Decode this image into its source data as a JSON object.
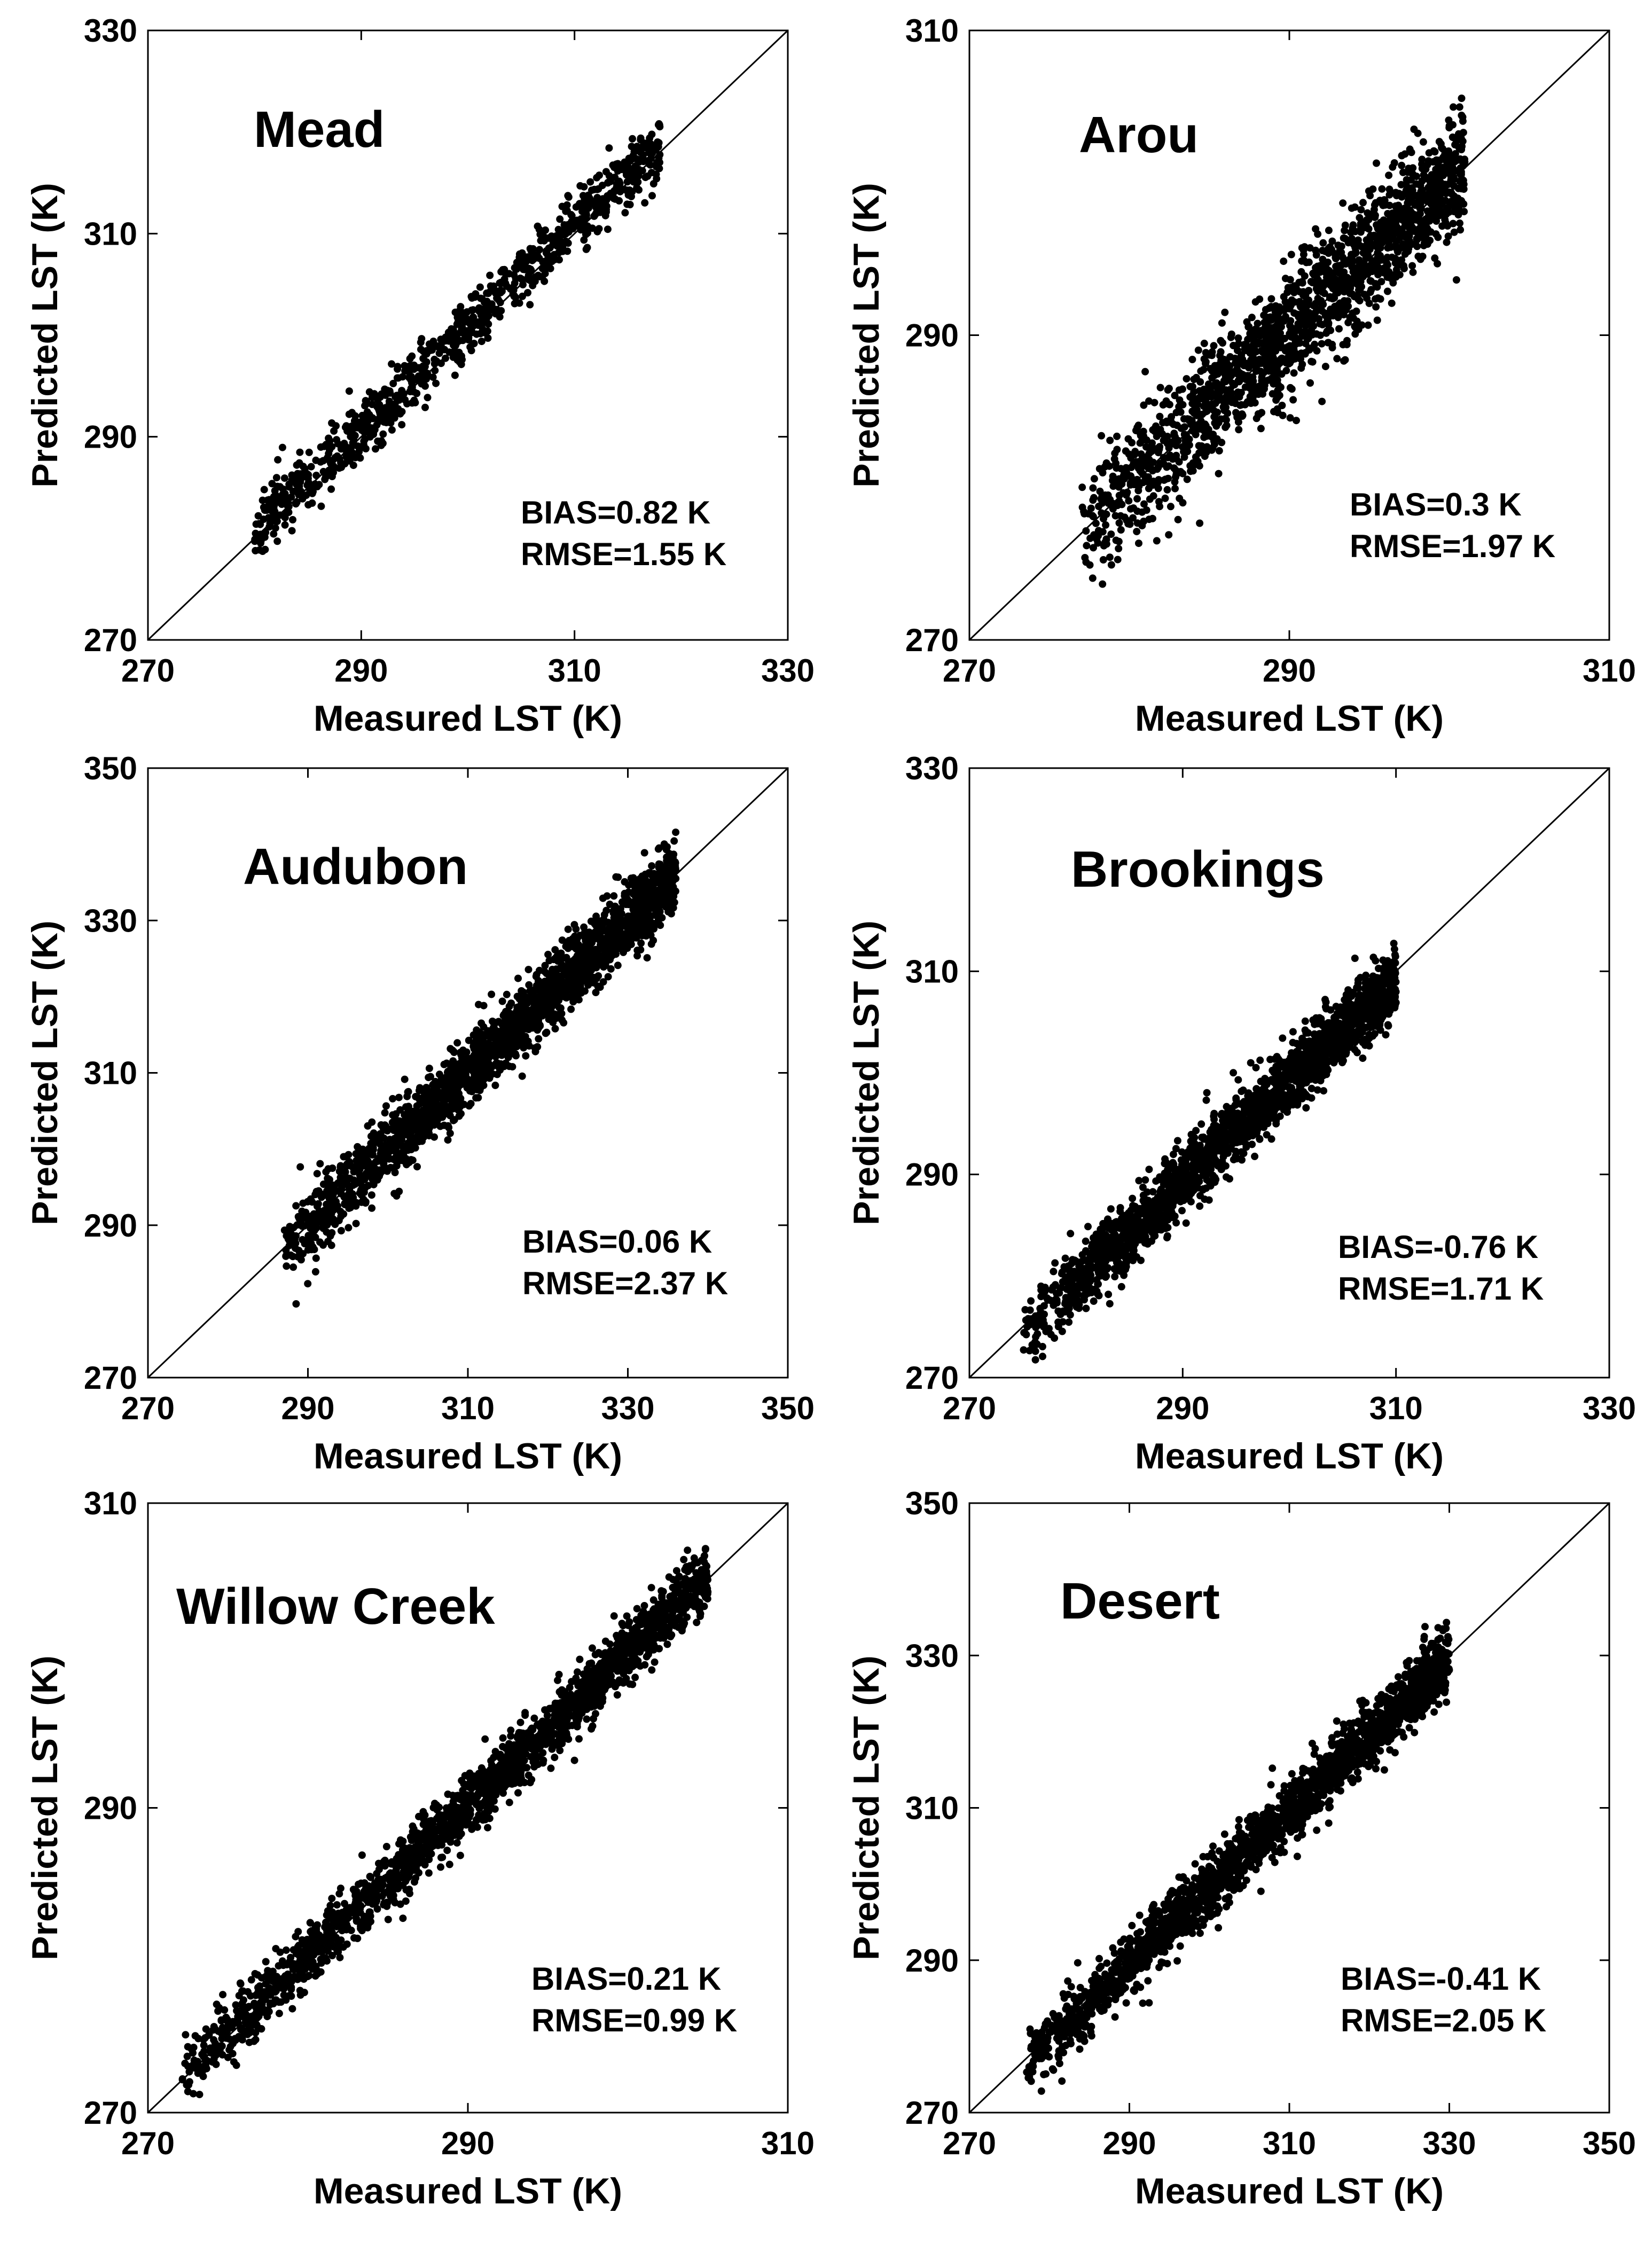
{
  "chart_data": [
    {
      "type": "scatter",
      "title": "Mead",
      "xlabel": "Measured LST (K)",
      "ylabel": "Predicted LST (K)",
      "xlim": [
        270,
        330
      ],
      "ylim": [
        270,
        330
      ],
      "xticks": [
        "270",
        "290",
        "310",
        "330"
      ],
      "yticks": [
        "270",
        "290",
        "310",
        "330"
      ],
      "one_to_one_line": true,
      "bias": "BIAS=0.82 K",
      "rmse": "RMSE=1.55 K",
      "scatter_model": {
        "x_min": 280,
        "x_max": 318,
        "slope": 1.0,
        "intercept": 0.82,
        "spread": 1.55,
        "n": 900,
        "seed": 11,
        "density": "mid"
      }
    },
    {
      "type": "scatter",
      "title": "Arou",
      "xlabel": "Measured LST (K)",
      "ylabel": "Predicted LST (K)",
      "xlim": [
        270,
        310
      ],
      "ylim": [
        270,
        310
      ],
      "xticks": [
        "270",
        "290",
        "310"
      ],
      "yticks": [
        "270",
        "290",
        "310"
      ],
      "one_to_one_line": true,
      "bias": "BIAS=0.3 K",
      "rmse": "RMSE=1.97 K",
      "scatter_model": {
        "x_min": 277,
        "x_max": 301,
        "slope": 1.0,
        "intercept": 0.3,
        "spread": 1.97,
        "n": 1700,
        "seed": 22,
        "density": "high"
      }
    },
    {
      "type": "scatter",
      "title": "Audubon",
      "xlabel": "Measured LST (K)",
      "ylabel": "Predicted LST (K)",
      "xlim": [
        270,
        350
      ],
      "ylim": [
        270,
        350
      ],
      "xticks": [
        "270",
        "290",
        "310",
        "330",
        "350"
      ],
      "yticks": [
        "270",
        "290",
        "310",
        "330",
        "350"
      ],
      "one_to_one_line": true,
      "bias": "BIAS=0.06 K",
      "rmse": "RMSE=2.37 K",
      "scatter_model": {
        "x_min": 287,
        "x_max": 336,
        "slope": 1.0,
        "intercept": 0.06,
        "spread": 2.37,
        "n": 2000,
        "seed": 33,
        "density": "high"
      }
    },
    {
      "type": "scatter",
      "title": "Brookings",
      "xlabel": "Measured LST (K)",
      "ylabel": "Predicted LST (K)",
      "xlim": [
        270,
        330
      ],
      "ylim": [
        270,
        330
      ],
      "xticks": [
        "270",
        "290",
        "310",
        "330"
      ],
      "yticks": [
        "270",
        "290",
        "310",
        "330"
      ],
      "one_to_one_line": true,
      "bias": "BIAS=-0.76 K",
      "rmse": "RMSE=1.71 K",
      "scatter_model": {
        "x_min": 275,
        "x_max": 310,
        "slope": 1.0,
        "intercept": -0.76,
        "spread": 1.71,
        "n": 2000,
        "seed": 44,
        "density": "high"
      }
    },
    {
      "type": "scatter",
      "title": "Willow Creek",
      "xlabel": "Measured LST (K)",
      "ylabel": "Predicted LST (K)",
      "xlim": [
        270,
        310
      ],
      "ylim": [
        270,
        310
      ],
      "xticks": [
        "270",
        "290",
        "310"
      ],
      "yticks": [
        "270",
        "290",
        "310"
      ],
      "one_to_one_line": true,
      "bias": "BIAS=0.21 K",
      "rmse": "RMSE=0.99 K",
      "scatter_model": {
        "x_min": 272,
        "x_max": 305,
        "slope": 1.0,
        "intercept": 0.21,
        "spread": 0.99,
        "n": 2000,
        "seed": 55,
        "density": "high"
      }
    },
    {
      "type": "scatter",
      "title": "Desert",
      "xlabel": "Measured LST (K)",
      "ylabel": "Predicted LST (K)",
      "xlim": [
        270,
        350
      ],
      "ylim": [
        270,
        350
      ],
      "xticks": [
        "270",
        "290",
        "310",
        "330",
        "350"
      ],
      "yticks": [
        "270",
        "290",
        "310",
        "330",
        "350"
      ],
      "one_to_one_line": true,
      "bias": "BIAS=-0.41 K",
      "rmse": "RMSE=2.05 K",
      "scatter_model": {
        "x_min": 277,
        "x_max": 330,
        "slope": 1.0,
        "intercept": -0.41,
        "spread": 2.05,
        "n": 2000,
        "seed": 66,
        "density": "high"
      }
    }
  ]
}
